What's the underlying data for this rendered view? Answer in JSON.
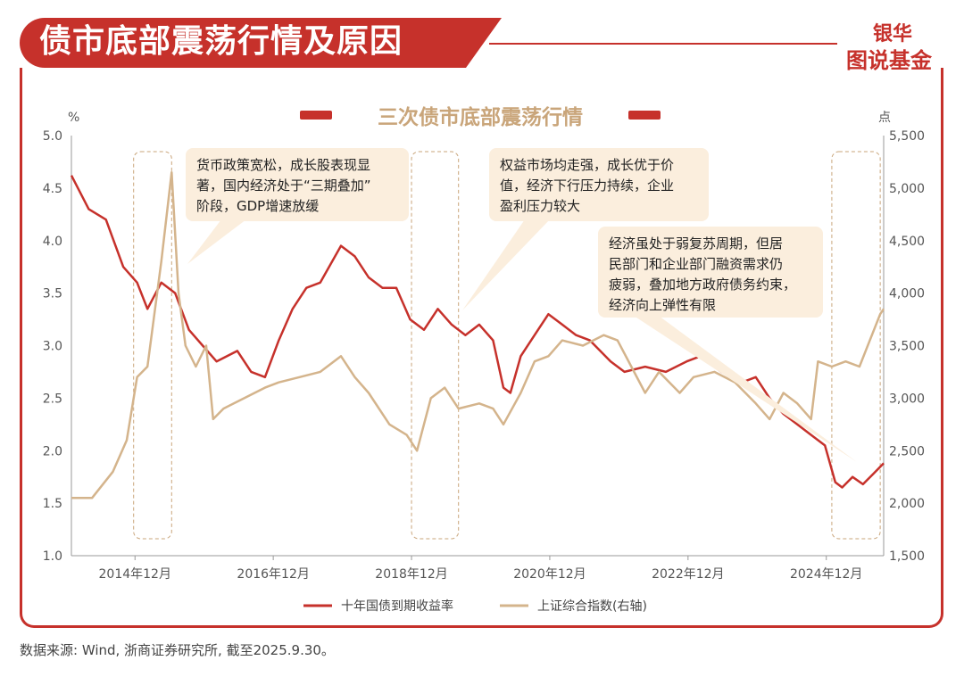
{
  "header": {
    "title": "债市底部震荡行情及原因"
  },
  "logo": {
    "line1": "银华",
    "line2": "图说基金"
  },
  "source_note": "数据来源: Wind, 浙商证券研究所, 截至2025.9.30。",
  "colors": {
    "accent": "#c6312b",
    "yield_line": "#c6312b",
    "index_line": "#d4b48c",
    "callout_bg": "#fbeedd"
  },
  "chart_data": {
    "type": "line",
    "title": "三次债市底部震荡行情",
    "y_left_unit": "%",
    "y_right_unit": "点",
    "ylim_left": [
      1.0,
      5.0
    ],
    "ylim_right": [
      1500,
      5500
    ],
    "y_left_ticks": [
      "1.0",
      "1.5",
      "2.0",
      "2.5",
      "3.0",
      "3.5",
      "4.0",
      "4.5",
      "5.0"
    ],
    "y_right_ticks": [
      "1,500",
      "2,000",
      "2,500",
      "3,000",
      "3,500",
      "4,000",
      "4,500",
      "5,000",
      "5,500"
    ],
    "x_range": [
      2014.0,
      2025.75
    ],
    "x_ticks": [
      {
        "x": 2014.92,
        "label": "2014年12月"
      },
      {
        "x": 2016.92,
        "label": "2016年12月"
      },
      {
        "x": 2018.92,
        "label": "2018年12月"
      },
      {
        "x": 2020.92,
        "label": "2020年12月"
      },
      {
        "x": 2022.92,
        "label": "2022年12月"
      },
      {
        "x": 2024.92,
        "label": "2024年12月"
      }
    ],
    "legend": {
      "placement": "bottom-center"
    },
    "series": [
      {
        "name": "十年国债到期收益率",
        "axis": "left",
        "points": [
          [
            2014.0,
            4.62
          ],
          [
            2014.25,
            4.3
          ],
          [
            2014.5,
            4.2
          ],
          [
            2014.75,
            3.75
          ],
          [
            2014.95,
            3.6
          ],
          [
            2015.1,
            3.35
          ],
          [
            2015.3,
            3.6
          ],
          [
            2015.5,
            3.5
          ],
          [
            2015.7,
            3.15
          ],
          [
            2015.9,
            3.0
          ],
          [
            2016.1,
            2.85
          ],
          [
            2016.4,
            2.95
          ],
          [
            2016.6,
            2.75
          ],
          [
            2016.8,
            2.7
          ],
          [
            2017.0,
            3.05
          ],
          [
            2017.2,
            3.35
          ],
          [
            2017.4,
            3.55
          ],
          [
            2017.6,
            3.6
          ],
          [
            2017.9,
            3.95
          ],
          [
            2018.1,
            3.85
          ],
          [
            2018.3,
            3.65
          ],
          [
            2018.5,
            3.55
          ],
          [
            2018.7,
            3.55
          ],
          [
            2018.9,
            3.25
          ],
          [
            2019.1,
            3.15
          ],
          [
            2019.3,
            3.35
          ],
          [
            2019.5,
            3.2
          ],
          [
            2019.7,
            3.1
          ],
          [
            2019.9,
            3.2
          ],
          [
            2020.1,
            3.05
          ],
          [
            2020.25,
            2.6
          ],
          [
            2020.35,
            2.55
          ],
          [
            2020.5,
            2.9
          ],
          [
            2020.7,
            3.1
          ],
          [
            2020.9,
            3.3
          ],
          [
            2021.1,
            3.2
          ],
          [
            2021.3,
            3.1
          ],
          [
            2021.5,
            3.05
          ],
          [
            2021.8,
            2.85
          ],
          [
            2022.0,
            2.75
          ],
          [
            2022.3,
            2.8
          ],
          [
            2022.6,
            2.75
          ],
          [
            2022.9,
            2.85
          ],
          [
            2023.1,
            2.9
          ],
          [
            2023.4,
            2.75
          ],
          [
            2023.7,
            2.65
          ],
          [
            2023.9,
            2.7
          ],
          [
            2024.1,
            2.5
          ],
          [
            2024.3,
            2.35
          ],
          [
            2024.5,
            2.25
          ],
          [
            2024.7,
            2.15
          ],
          [
            2024.9,
            2.05
          ],
          [
            2025.05,
            1.7
          ],
          [
            2025.15,
            1.65
          ],
          [
            2025.3,
            1.75
          ],
          [
            2025.45,
            1.68
          ],
          [
            2025.6,
            1.78
          ],
          [
            2025.75,
            1.88
          ]
        ]
      },
      {
        "name": "上证综合指数(右轴)",
        "axis": "right",
        "points": [
          [
            2014.0,
            2050
          ],
          [
            2014.3,
            2050
          ],
          [
            2014.6,
            2300
          ],
          [
            2014.8,
            2600
          ],
          [
            2014.95,
            3200
          ],
          [
            2015.1,
            3300
          ],
          [
            2015.3,
            4300
          ],
          [
            2015.45,
            5150
          ],
          [
            2015.55,
            4000
          ],
          [
            2015.65,
            3500
          ],
          [
            2015.8,
            3300
          ],
          [
            2015.95,
            3500
          ],
          [
            2016.05,
            2800
          ],
          [
            2016.2,
            2900
          ],
          [
            2016.5,
            3000
          ],
          [
            2016.8,
            3100
          ],
          [
            2017.0,
            3150
          ],
          [
            2017.3,
            3200
          ],
          [
            2017.6,
            3250
          ],
          [
            2017.9,
            3400
          ],
          [
            2018.1,
            3200
          ],
          [
            2018.3,
            3050
          ],
          [
            2018.6,
            2750
          ],
          [
            2018.85,
            2650
          ],
          [
            2019.0,
            2500
          ],
          [
            2019.2,
            3000
          ],
          [
            2019.4,
            3100
          ],
          [
            2019.6,
            2900
          ],
          [
            2019.9,
            2950
          ],
          [
            2020.1,
            2900
          ],
          [
            2020.25,
            2750
          ],
          [
            2020.5,
            3050
          ],
          [
            2020.7,
            3350
          ],
          [
            2020.9,
            3400
          ],
          [
            2021.1,
            3550
          ],
          [
            2021.4,
            3500
          ],
          [
            2021.7,
            3600
          ],
          [
            2021.9,
            3550
          ],
          [
            2022.1,
            3300
          ],
          [
            2022.3,
            3050
          ],
          [
            2022.5,
            3250
          ],
          [
            2022.8,
            3050
          ],
          [
            2023.0,
            3200
          ],
          [
            2023.3,
            3250
          ],
          [
            2023.6,
            3150
          ],
          [
            2023.9,
            2950
          ],
          [
            2024.1,
            2800
          ],
          [
            2024.3,
            3050
          ],
          [
            2024.5,
            2950
          ],
          [
            2024.7,
            2800
          ],
          [
            2024.8,
            3350
          ],
          [
            2025.0,
            3300
          ],
          [
            2025.2,
            3350
          ],
          [
            2025.4,
            3300
          ],
          [
            2025.55,
            3550
          ],
          [
            2025.7,
            3800
          ],
          [
            2025.75,
            3850
          ]
        ]
      }
    ],
    "shaded_periods": [
      {
        "x0": 2014.9,
        "x1": 2015.45
      },
      {
        "x0": 2018.92,
        "x1": 2019.6
      },
      {
        "x0": 2025.0,
        "x1": 2025.7
      }
    ],
    "annotations": [
      {
        "text": [
          "货币政策宽松，成长股表现显",
          "著，国内经济处于“三期叠加”",
          "阶段，GDP增速放缓"
        ]
      },
      {
        "text": [
          "权益市场均走强，成长优于价",
          "值，经济下行压力持续，企业",
          "盈利压力较大"
        ]
      },
      {
        "text": [
          "经济虽处于弱复苏周期，但居",
          "民部门和企业部门融资需求仍",
          "疲弱，叠加地方政府债务约束，",
          "经济向上弹性有限"
        ]
      }
    ]
  }
}
